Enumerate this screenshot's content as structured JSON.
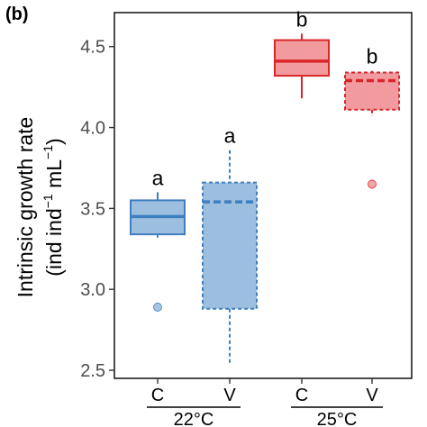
{
  "panel_label": "(b)",
  "chart_data": {
    "type": "box",
    "ylabel_line1": "Intrinsic growth rate",
    "ylabel_line2_pre": "(ind ind",
    "ylabel_sup1": "−1",
    "ylabel_line2_mid": " mL",
    "ylabel_sup2": "−1",
    "ylabel_line2_post": ")",
    "ylim": [
      2.45,
      4.71
    ],
    "yticks": [
      "2.5",
      "3.0",
      "3.5",
      "4.0",
      "4.5"
    ],
    "categories": [
      "C",
      "V",
      "C",
      "V"
    ],
    "groups": [
      {
        "label": "22°C",
        "members": [
          0,
          1
        ]
      },
      {
        "label": "25°C",
        "members": [
          2,
          3
        ]
      }
    ],
    "series": [
      {
        "category": "C",
        "group": "22°C",
        "whisker_low": 3.32,
        "q1": 3.34,
        "median": 3.45,
        "q3": 3.55,
        "whisker_high": 3.6,
        "outliers": [
          2.89
        ],
        "significance": "a",
        "line_style": "solid",
        "color": "#3f7fbf",
        "fill": "#9dbfdf"
      },
      {
        "category": "V",
        "group": "22°C",
        "whisker_low": 2.53,
        "q1": 2.88,
        "median": 3.54,
        "q3": 3.66,
        "whisker_high": 3.86,
        "outliers": [],
        "significance": "a",
        "line_style": "dashed",
        "color": "#3f7fbf",
        "fill": "#9dbfdf"
      },
      {
        "category": "C",
        "group": "25°C",
        "whisker_low": 4.18,
        "q1": 4.32,
        "median": 4.41,
        "q3": 4.54,
        "whisker_high": 4.58,
        "outliers": [],
        "significance": "b",
        "line_style": "solid",
        "color": "#d9262b",
        "fill": "#f29b9e"
      },
      {
        "category": "V",
        "group": "25°C",
        "whisker_low": 4.07,
        "q1": 4.11,
        "median": 4.29,
        "q3": 4.34,
        "whisker_high": 4.35,
        "outliers": [
          3.65
        ],
        "significance": "b",
        "line_style": "dashed",
        "color": "#d9262b",
        "fill": "#f29b9e"
      }
    ],
    "grid": false,
    "legend": "none"
  }
}
